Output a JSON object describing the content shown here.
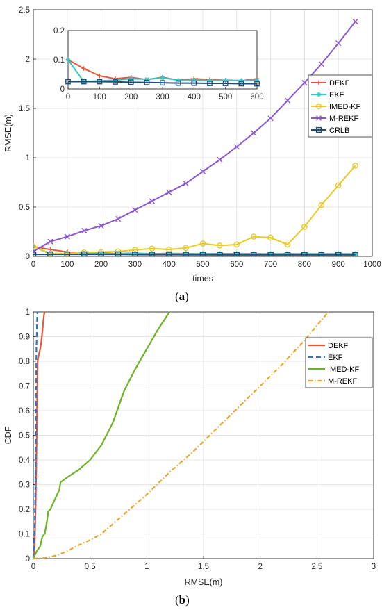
{
  "captions": {
    "a": "a",
    "b": "b"
  },
  "chart_data": [
    {
      "id": "a",
      "type": "line",
      "xlabel": "times",
      "ylabel": "RMSE(m)",
      "xlim": [
        0,
        1000
      ],
      "ylim": [
        0,
        2.5
      ],
      "xticks": [
        0,
        100,
        200,
        300,
        400,
        500,
        600,
        700,
        800,
        900,
        1000
      ],
      "yticks": [
        0,
        0.5,
        1,
        1.5,
        2,
        2.5
      ],
      "grid": true,
      "legend": "right",
      "x": [
        0,
        50,
        100,
        150,
        200,
        250,
        300,
        350,
        400,
        450,
        500,
        550,
        600,
        650,
        700,
        750,
        800,
        850,
        900,
        950
      ],
      "series": [
        {
          "name": "DEKF",
          "color": "#e8553a",
          "marker": "plus",
          "values": [
            0.1,
            0.07,
            0.045,
            0.03,
            0.035,
            0.028,
            0.033,
            0.027,
            0.03,
            0.028,
            0.027,
            0.028,
            0.027,
            0.027,
            0.026,
            0.027,
            0.026,
            0.026,
            0.026,
            0.026
          ]
        },
        {
          "name": "EKF",
          "color": "#35c7c9",
          "marker": "star",
          "values": [
            0.1,
            0.025,
            0.025,
            0.025,
            0.026,
            0.025,
            0.03,
            0.025,
            0.025,
            0.025,
            0.026,
            0.025,
            0.025,
            0.025,
            0.025,
            0.025,
            0.025,
            0.025,
            0.025,
            0.025
          ]
        },
        {
          "name": "IMED-KF",
          "color": "#e9c924",
          "marker": "circle",
          "values": [
            0.1,
            0.03,
            0.03,
            0.04,
            0.045,
            0.05,
            0.065,
            0.08,
            0.07,
            0.085,
            0.13,
            0.11,
            0.12,
            0.2,
            0.19,
            0.12,
            0.3,
            0.52,
            0.72,
            0.92
          ]
        },
        {
          "name": "M-REKF",
          "color": "#8a55d3",
          "marker": "x",
          "values": [
            0.05,
            0.15,
            0.2,
            0.26,
            0.31,
            0.38,
            0.47,
            0.56,
            0.65,
            0.74,
            0.86,
            0.98,
            1.11,
            1.25,
            1.4,
            1.58,
            1.76,
            1.95,
            2.16,
            2.38
          ]
        },
        {
          "name": "CRLB",
          "color": "#1f4e79",
          "marker": "square",
          "values": [
            0.02,
            0.02,
            0.02,
            0.02,
            0.02,
            0.02,
            0.018,
            0.017,
            0.017,
            0.016,
            0.016,
            0.015,
            0.015,
            0.015,
            0.015,
            0.015,
            0.015,
            0.015,
            0.015,
            0.015
          ]
        }
      ],
      "inset": {
        "xlim": [
          0,
          600
        ],
        "ylim": [
          0,
          0.2
        ],
        "xticks": [
          0,
          100,
          200,
          300,
          400,
          500,
          600
        ],
        "yticks": [
          0,
          0.1,
          0.2
        ],
        "x": [
          0,
          50,
          100,
          150,
          200,
          250,
          300,
          350,
          400,
          450,
          500,
          550,
          600
        ],
        "series": [
          {
            "name": "DEKF",
            "values": [
              0.1,
              0.07,
              0.045,
              0.035,
              0.04,
              0.032,
              0.04,
              0.03,
              0.035,
              0.032,
              0.03,
              0.028,
              0.035
            ]
          },
          {
            "name": "EKF",
            "values": [
              0.1,
              0.025,
              0.028,
              0.03,
              0.035,
              0.033,
              0.038,
              0.03,
              0.03,
              0.029,
              0.03,
              0.029,
              0.03
            ]
          },
          {
            "name": "CRLB",
            "values": [
              0.025,
              0.025,
              0.025,
              0.024,
              0.023,
              0.022,
              0.021,
              0.02,
              0.02,
              0.019,
              0.019,
              0.018,
              0.018
            ]
          }
        ]
      }
    },
    {
      "id": "b",
      "type": "line",
      "xlabel": "RMSE(m)",
      "ylabel": "CDF",
      "xlim": [
        0,
        3
      ],
      "ylim": [
        0,
        1
      ],
      "xticks": [
        0,
        0.5,
        1,
        1.5,
        2,
        2.5,
        3
      ],
      "yticks": [
        0,
        0.1,
        0.2,
        0.3,
        0.4,
        0.5,
        0.6,
        0.7,
        0.8,
        0.9,
        1
      ],
      "grid": true,
      "legend": "right",
      "series": [
        {
          "name": "DEKF",
          "color": "#e8553a",
          "dash": "",
          "x": [
            0,
            0.012,
            0.022,
            0.03,
            0.035,
            0.038,
            0.045,
            0.06,
            0.07,
            0.08,
            0.085,
            0.095,
            0.1
          ],
          "y": [
            0,
            0.05,
            0.25,
            0.5,
            0.7,
            0.8,
            0.82,
            0.85,
            0.88,
            0.92,
            0.95,
            0.99,
            1.0
          ]
        },
        {
          "name": "EKF",
          "color": "#2d74c3",
          "dash": "7,4",
          "x": [
            0,
            0.012,
            0.018,
            0.022,
            0.025,
            0.027,
            0.03,
            0.032,
            0.034,
            0.036
          ],
          "y": [
            0,
            0.1,
            0.3,
            0.5,
            0.7,
            0.85,
            0.9,
            0.95,
            0.98,
            1.0
          ]
        },
        {
          "name": "IMED-KF",
          "color": "#6bb324",
          "dash": "",
          "x": [
            0,
            0.03,
            0.06,
            0.08,
            0.1,
            0.12,
            0.13,
            0.15,
            0.18,
            0.2,
            0.22,
            0.23,
            0.24,
            0.3,
            0.4,
            0.5,
            0.6,
            0.7,
            0.8,
            0.9,
            1.0,
            1.1,
            1.2
          ],
          "y": [
            0,
            0.03,
            0.05,
            0.09,
            0.1,
            0.15,
            0.19,
            0.2,
            0.23,
            0.25,
            0.27,
            0.28,
            0.31,
            0.33,
            0.36,
            0.4,
            0.46,
            0.55,
            0.68,
            0.77,
            0.85,
            0.93,
            1.0
          ]
        },
        {
          "name": "M-REKF",
          "color": "#e9a52b",
          "dash": "6,3,1.5,3",
          "x": [
            0,
            0.1,
            0.2,
            0.3,
            0.4,
            0.5,
            0.6,
            0.8,
            1.0,
            1.2,
            1.4,
            1.6,
            1.8,
            2.0,
            2.2,
            2.4,
            2.6
          ],
          "y": [
            0,
            0.003,
            0.012,
            0.03,
            0.055,
            0.075,
            0.1,
            0.18,
            0.26,
            0.35,
            0.43,
            0.52,
            0.61,
            0.7,
            0.79,
            0.89,
            1.0
          ]
        }
      ]
    }
  ]
}
